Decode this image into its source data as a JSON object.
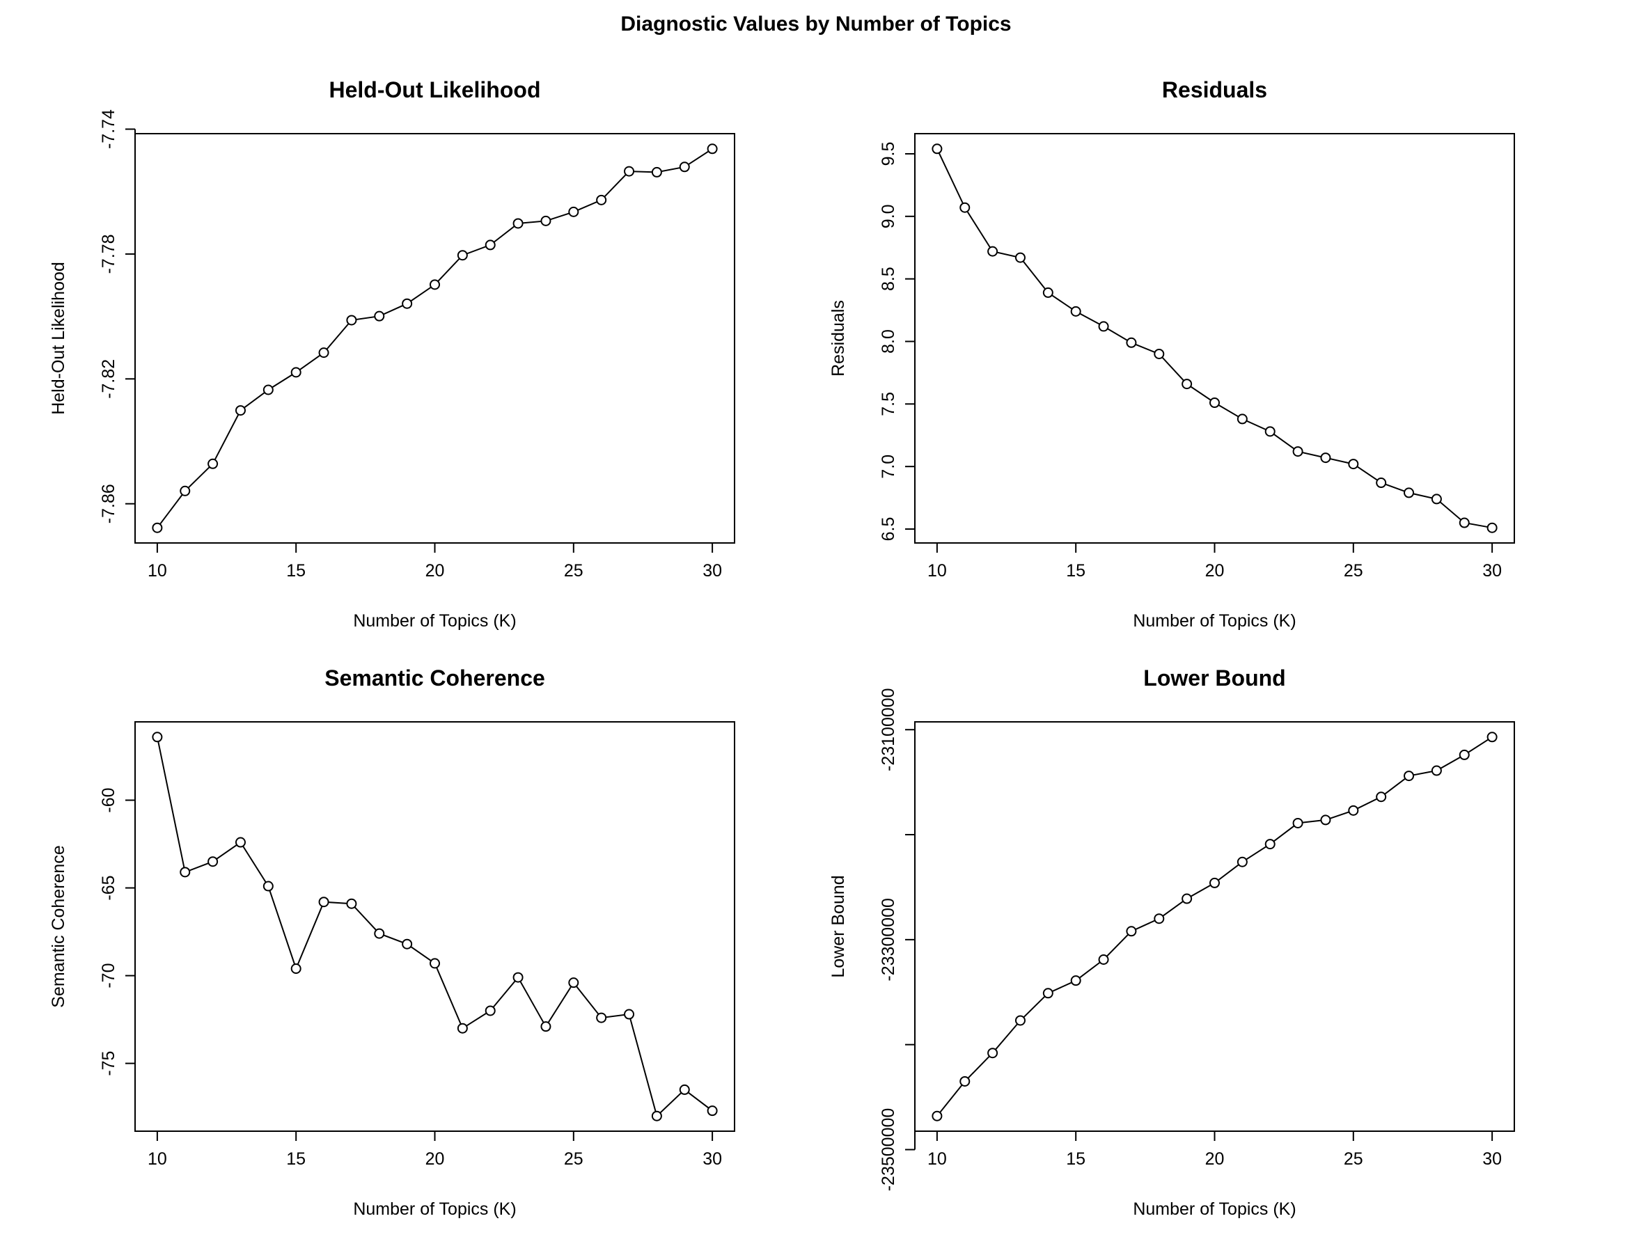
{
  "title": "Diagnostic Values by Number of Topics",
  "colors": {
    "line": "#000000",
    "background": "#ffffff"
  },
  "chart_data": [
    {
      "type": "line",
      "title": "Held-Out Likelihood",
      "xlabel": "Number of Topics (K)",
      "ylabel": "Held-Out Likelihood",
      "x": [
        10,
        11,
        12,
        13,
        14,
        15,
        16,
        17,
        18,
        19,
        20,
        21,
        22,
        23,
        24,
        25,
        26,
        27,
        28,
        29,
        30
      ],
      "y": [
        -7.8677,
        -7.8559,
        -7.8472,
        -7.8301,
        -7.8235,
        -7.8179,
        -7.8116,
        -7.8012,
        -7.7999,
        -7.7959,
        -7.7898,
        -7.7804,
        -7.7771,
        -7.7702,
        -7.7694,
        -7.7665,
        -7.7627,
        -7.7535,
        -7.7538,
        -7.7521,
        -7.7463
      ],
      "xlim": [
        10,
        30
      ],
      "ylim": [
        -7.8677,
        -7.7463
      ],
      "xticks": [
        10,
        15,
        20,
        25,
        30
      ],
      "xtick_labels": [
        "10",
        "15",
        "20",
        "25",
        "30"
      ],
      "yticks": [
        -7.86,
        -7.82,
        -7.78,
        -7.74
      ],
      "ytick_labels": [
        "-7.86",
        "-7.82",
        "-7.78",
        "-7.74"
      ]
    },
    {
      "type": "line",
      "title": "Residuals",
      "xlabel": "Number of Topics (K)",
      "ylabel": "Residuals",
      "x": [
        10,
        11,
        12,
        13,
        14,
        15,
        16,
        17,
        18,
        19,
        20,
        21,
        22,
        23,
        24,
        25,
        26,
        27,
        28,
        29,
        30
      ],
      "y": [
        9.54,
        9.07,
        8.72,
        8.67,
        8.39,
        8.24,
        8.12,
        7.99,
        7.9,
        7.66,
        7.51,
        7.38,
        7.28,
        7.12,
        7.07,
        7.02,
        6.87,
        6.79,
        6.74,
        6.55,
        6.51
      ],
      "xlim": [
        10,
        30
      ],
      "ylim": [
        6.51,
        9.54
      ],
      "xticks": [
        10,
        15,
        20,
        25,
        30
      ],
      "xtick_labels": [
        "10",
        "15",
        "20",
        "25",
        "30"
      ],
      "yticks": [
        6.5,
        7.0,
        7.5,
        8.0,
        8.5,
        9.0,
        9.5
      ],
      "ytick_labels": [
        "6.5",
        "7.0",
        "7.5",
        "8.0",
        "8.5",
        "9.0",
        "9.5"
      ]
    },
    {
      "type": "line",
      "title": "Semantic Coherence",
      "xlabel": "Number of Topics (K)",
      "ylabel": "Semantic Coherence",
      "x": [
        10,
        11,
        12,
        13,
        14,
        15,
        16,
        17,
        18,
        19,
        20,
        21,
        22,
        23,
        24,
        25,
        26,
        27,
        28,
        29,
        30
      ],
      "y": [
        -56.4,
        -64.1,
        -63.5,
        -62.4,
        -64.9,
        -69.6,
        -65.8,
        -65.9,
        -67.6,
        -68.2,
        -69.3,
        -73.0,
        -72.0,
        -70.1,
        -72.9,
        -70.4,
        -72.4,
        -72.2,
        -78.0,
        -76.5,
        -77.7
      ],
      "xlim": [
        10,
        30
      ],
      "ylim": [
        -78.0,
        -56.4
      ],
      "xticks": [
        10,
        15,
        20,
        25,
        30
      ],
      "xtick_labels": [
        "10",
        "15",
        "20",
        "25",
        "30"
      ],
      "yticks": [
        -75,
        -70,
        -65,
        -60
      ],
      "ytick_labels": [
        "-75",
        "-70",
        "-65",
        "-60"
      ]
    },
    {
      "type": "line",
      "title": "Lower Bound",
      "xlabel": "Number of Topics (K)",
      "ylabel": "Lower Bound",
      "x": [
        10,
        11,
        12,
        13,
        14,
        15,
        16,
        17,
        18,
        19,
        20,
        21,
        22,
        23,
        24,
        25,
        26,
        27,
        28,
        29,
        30
      ],
      "y": [
        -23468000,
        -23435000,
        -23408000,
        -23377000,
        -23351000,
        -23339000,
        -23319000,
        -23292000,
        -23280000,
        -23261000,
        -23246000,
        -23226000,
        -23209000,
        -23189000,
        -23186000,
        -23177000,
        -23164000,
        -23144000,
        -23139000,
        -23124000,
        -23107000
      ],
      "xlim": [
        10,
        30
      ],
      "ylim": [
        -23468000,
        -23107000
      ],
      "xticks": [
        10,
        15,
        20,
        25,
        30
      ],
      "xtick_labels": [
        "10",
        "15",
        "20",
        "25",
        "30"
      ],
      "yticks": [
        -23500000,
        -23300000,
        -23100000
      ],
      "ytick_labels": [
        "-23500000",
        "-23300000",
        "-23100000"
      ],
      "yticks_minor": [
        -23400000,
        -23200000
      ]
    }
  ]
}
